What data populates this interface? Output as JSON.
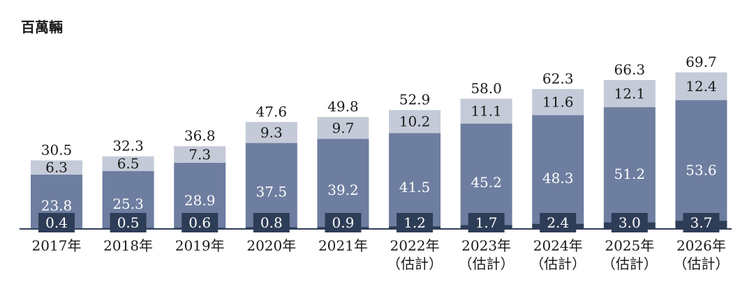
{
  "chart_data": {
    "type": "bar",
    "stacked": true,
    "unit_label": "百萬輛",
    "categories": [
      [
        "2017年"
      ],
      [
        "2018年"
      ],
      [
        "2019年"
      ],
      [
        "2020年"
      ],
      [
        "2021年"
      ],
      [
        "2022年",
        "（估計）"
      ],
      [
        "2023年",
        "（估計）"
      ],
      [
        "2024年",
        "（估計）"
      ],
      [
        "2025年",
        "（估計）"
      ],
      [
        "2026年",
        "（估計）"
      ]
    ],
    "series": [
      {
        "values": [
          0.4,
          0.5,
          0.6,
          0.8,
          0.9,
          1.2,
          1.7,
          2.4,
          3.0,
          3.7
        ]
      },
      {
        "values": [
          23.8,
          25.3,
          28.9,
          37.5,
          39.2,
          41.5,
          45.2,
          48.3,
          51.2,
          53.6
        ]
      },
      {
        "values": [
          6.3,
          6.5,
          7.3,
          9.3,
          9.7,
          10.2,
          11.1,
          11.6,
          12.1,
          12.4
        ]
      }
    ],
    "totals": [
      30.5,
      32.3,
      36.8,
      47.6,
      49.8,
      52.9,
      58.0,
      62.3,
      66.3,
      69.7
    ],
    "ylim": [
      0,
      69.7
    ],
    "grid": false,
    "legend": "none",
    "colors": {
      "bottom": "#2e3d57",
      "middle": "#6e7ea0",
      "top": "#c4cad7",
      "label_box": "#2e3d57"
    }
  }
}
